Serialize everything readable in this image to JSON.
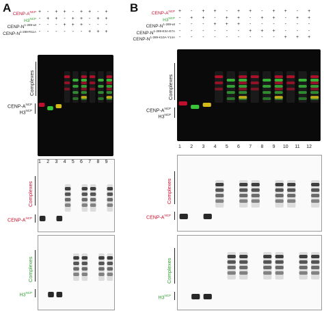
{
  "panels": {
    "A": {
      "letter": "A",
      "rows": [
        {
          "label": "CENP-A",
          "sup": "NCP",
          "color": "#c8102e",
          "signs": [
            "+",
            "-",
            "+",
            "+",
            "-",
            "+",
            "+",
            "-",
            "+"
          ]
        },
        {
          "label": "H3",
          "sup": "NCP",
          "color": "#2e9e2e",
          "signs": [
            "-",
            "+",
            "+",
            "-",
            "+",
            "+",
            "-",
            "+",
            "+"
          ]
        },
        {
          "label": "CENP-N",
          "sup": "1-289-wt",
          "color": "#222222",
          "signs": [
            "-",
            "-",
            "-",
            "+",
            "+",
            "+",
            "-",
            "-",
            "-"
          ]
        },
        {
          "label": "CENP-N",
          "sup": "1-289-R11A",
          "color": "#222222",
          "signs": [
            "-",
            "-",
            "-",
            "-",
            "-",
            "-",
            "+",
            "+",
            "+"
          ]
        }
      ],
      "lane_numbers": [
        "1",
        "2",
        "3",
        "4",
        "5",
        "6",
        "7",
        "8",
        "9"
      ],
      "complexes_label": "Complexes",
      "ncp_labels": {
        "cenpa": "CENP-A",
        "cenpa_sup": "NCP",
        "h3": "H3",
        "h3_sup": "NCP"
      },
      "bottom_labels": {
        "cenpa": "CENP-A",
        "cenpa_sup": "NCP",
        "h3": "H3",
        "h3_sup": "NCP"
      }
    },
    "B": {
      "letter": "B",
      "rows": [
        {
          "label": "CENP-A",
          "sup": "NCP",
          "color": "#c8102e",
          "signs": [
            "+",
            "-",
            "+",
            "+",
            "-",
            "+",
            "+",
            "-",
            "+",
            "+",
            "-",
            "+"
          ]
        },
        {
          "label": "H3",
          "sup": "NCP",
          "color": "#2e9e2e",
          "signs": [
            "-",
            "+",
            "+",
            "-",
            "+",
            "+",
            "-",
            "+",
            "+",
            "-",
            "+",
            "+"
          ]
        },
        {
          "label": "CENP-N",
          "sup": "1-289-wt",
          "color": "#222222",
          "signs": [
            "-",
            "-",
            "-",
            "+",
            "+",
            "+",
            "-",
            "-",
            "-",
            "-",
            "-",
            "-"
          ]
        },
        {
          "label": "CENP-N",
          "sup": "1-289-E3A-E7A",
          "color": "#222222",
          "signs": [
            "-",
            "-",
            "-",
            "-",
            "-",
            "-",
            "+",
            "+",
            "+",
            "-",
            "-",
            "-"
          ]
        },
        {
          "label": "CENP-N",
          "sup": "1-289-K10A-Y14A",
          "color": "#222222",
          "signs": [
            "-",
            "-",
            "-",
            "-",
            "-",
            "-",
            "-",
            "-",
            "-",
            "+",
            "+",
            "+"
          ]
        }
      ],
      "lane_numbers": [
        "1",
        "2",
        "3",
        "4",
        "5",
        "6",
        "7",
        "8",
        "9",
        "10",
        "11",
        "12"
      ],
      "complexes_label": "Complexes",
      "ncp_labels": {
        "cenpa": "CENP-A",
        "cenpa_sup": "NCP",
        "h3": "H3",
        "h3_sup": "NCP"
      },
      "bottom_labels": {
        "cenpa": "CENP-A",
        "cenpa_sup": "NCP",
        "h3": "H3",
        "h3_sup": "NCP"
      }
    }
  },
  "colors": {
    "red": "#c8102e",
    "green": "#2e9e2e",
    "gel_bg": "#0a0a0a"
  },
  "gel_data": {
    "A": {
      "red_lanes": [
        "free",
        "none",
        "free",
        "complex",
        "none",
        "complex",
        "complex",
        "none",
        "complex"
      ],
      "green_lanes": [
        "none",
        "free",
        "free",
        "none",
        "complex",
        "complex",
        "none",
        "complex",
        "complex"
      ]
    },
    "B": {
      "red_lanes": [
        "free",
        "none",
        "free",
        "complex",
        "none",
        "complex",
        "complex",
        "none",
        "complex",
        "complex",
        "none",
        "complex"
      ],
      "green_lanes": [
        "none",
        "free",
        "free",
        "none",
        "complex",
        "complex",
        "none",
        "complex",
        "complex",
        "none",
        "complex",
        "complex"
      ]
    }
  }
}
